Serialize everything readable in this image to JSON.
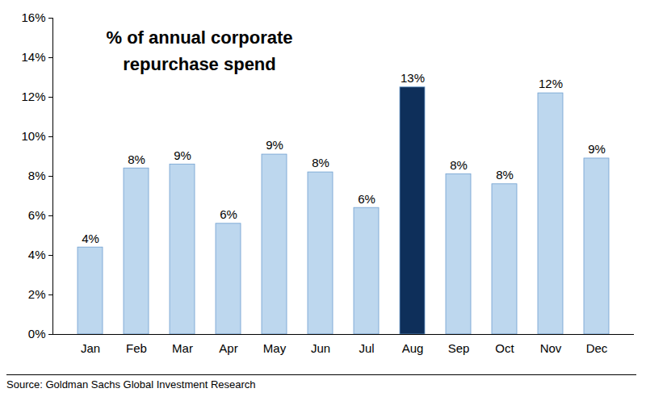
{
  "chart_data": {
    "type": "bar",
    "title": "% of annual corporate repurchase spend",
    "caption": "Source: Goldman Sachs Global Investment Research",
    "categories": [
      "Jan",
      "Feb",
      "Mar",
      "Apr",
      "May",
      "Jun",
      "Jul",
      "Aug",
      "Sep",
      "Oct",
      "Nov",
      "Dec"
    ],
    "values": [
      4.4,
      8.4,
      8.6,
      5.6,
      9.1,
      8.2,
      6.4,
      12.5,
      8.1,
      7.6,
      12.2,
      8.9
    ],
    "value_labels": [
      "4%",
      "8%",
      "9%",
      "6%",
      "9%",
      "8%",
      "6%",
      "13%",
      "8%",
      "8%",
      "12%",
      "9%"
    ],
    "colors": [
      "#bdd7ee",
      "#bdd7ee",
      "#bdd7ee",
      "#bdd7ee",
      "#bdd7ee",
      "#bdd7ee",
      "#bdd7ee",
      "#0e2f5a",
      "#bdd7ee",
      "#bdd7ee",
      "#bdd7ee",
      "#bdd7ee"
    ],
    "ylim": [
      0,
      16
    ],
    "yticks": [
      {
        "value": 0,
        "label": "0%"
      },
      {
        "value": 2,
        "label": "2%"
      },
      {
        "value": 4,
        "label": "4%"
      },
      {
        "value": 6,
        "label": "6%"
      },
      {
        "value": 8,
        "label": "8%"
      },
      {
        "value": 10,
        "label": "10%"
      },
      {
        "value": 12,
        "label": "12%"
      },
      {
        "value": 14,
        "label": "14%"
      },
      {
        "value": 16,
        "label": "16%"
      }
    ],
    "grid": false,
    "data_labels": true
  }
}
